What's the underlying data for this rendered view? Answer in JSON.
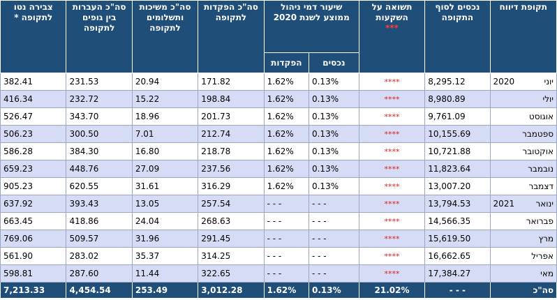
{
  "headers": {
    "period": "תקופת דיווח",
    "assets": "נכסים לסוף התקופה",
    "return": "תשואה על השקעות",
    "return_stars": "***",
    "fee": "שיעור דמי ניהול ממוצע לשנת 2020",
    "fee_assets": "נכסים",
    "fee_deposits": "הפקדות",
    "deposits": "סה\"כ הפקדות לתקופה",
    "withdrawals": "סה\"כ משיכות ותשלומים לתקופה",
    "transfers": "סה\"כ העברות בין גופים לתקופה",
    "net": "צבירה נטו לתקופה *"
  },
  "rows": [
    {
      "month": "יוני",
      "year": "2020",
      "assets": "8,295.12",
      "stars": "****",
      "fee_assets": "0.13%",
      "fee_deposits": "1.62%",
      "deposits": "171.82",
      "withdrawals": "20.94",
      "transfers": "231.53",
      "net": "382.41"
    },
    {
      "month": "יולי",
      "year": "",
      "assets": "8,980.89",
      "stars": "****",
      "fee_assets": "0.13%",
      "fee_deposits": "1.62%",
      "deposits": "198.84",
      "withdrawals": "15.22",
      "transfers": "232.72",
      "net": "416.34"
    },
    {
      "month": "אוגוסט",
      "year": "",
      "assets": "9,761.09",
      "stars": "****",
      "fee_assets": "0.13%",
      "fee_deposits": "1.62%",
      "deposits": "201.73",
      "withdrawals": "18.96",
      "transfers": "343.70",
      "net": "526.47"
    },
    {
      "month": "ספטמבר",
      "year": "",
      "assets": "10,155.69",
      "stars": "****",
      "fee_assets": "0.13%",
      "fee_deposits": "1.62%",
      "deposits": "212.74",
      "withdrawals": "7.01",
      "transfers": "300.50",
      "net": "506.23"
    },
    {
      "month": "אוקטובר",
      "year": "",
      "assets": "10,721.88",
      "stars": "****",
      "fee_assets": "0.13%",
      "fee_deposits": "1.62%",
      "deposits": "218.78",
      "withdrawals": "16.80",
      "transfers": "384.30",
      "net": "586.28"
    },
    {
      "month": "נובמבר",
      "year": "",
      "assets": "11,823.64",
      "stars": "****",
      "fee_assets": "0.13%",
      "fee_deposits": "1.62%",
      "deposits": "237.56",
      "withdrawals": "27.09",
      "transfers": "448.76",
      "net": "659.23"
    },
    {
      "month": "דצמבר",
      "year": "",
      "assets": "13,007.20",
      "stars": "****",
      "fee_assets": "0.13%",
      "fee_deposits": "1.62%",
      "deposits": "316.29",
      "withdrawals": "31.61",
      "transfers": "620.55",
      "net": "905.23"
    },
    {
      "month": "ינואר",
      "year": "2021",
      "assets": "13,794.53",
      "stars": "****",
      "fee_assets": "- - -",
      "fee_deposits": "- - -",
      "deposits": "257.54",
      "withdrawals": "13.05",
      "transfers": "393.43",
      "net": "637.92"
    },
    {
      "month": "פברואר",
      "year": "",
      "assets": "14,566.35",
      "stars": "****",
      "fee_assets": "- - -",
      "fee_deposits": "- - -",
      "deposits": "268.63",
      "withdrawals": "24.04",
      "transfers": "418.86",
      "net": "663.45"
    },
    {
      "month": "מרץ",
      "year": "",
      "assets": "15,619.50",
      "stars": "****",
      "fee_assets": "- - -",
      "fee_deposits": "- - -",
      "deposits": "291.45",
      "withdrawals": "31.96",
      "transfers": "509.57",
      "net": "769.06"
    },
    {
      "month": "אפריל",
      "year": "",
      "assets": "16,662.65",
      "stars": "****",
      "fee_assets": "- - -",
      "fee_deposits": "- - -",
      "deposits": "314.25",
      "withdrawals": "35.37",
      "transfers": "283.02",
      "net": "561.90"
    },
    {
      "month": "מאי",
      "year": "",
      "assets": "17,384.27",
      "stars": "****",
      "fee_assets": "- - -",
      "fee_deposits": "- - -",
      "deposits": "322.65",
      "withdrawals": "11.44",
      "transfers": "287.60",
      "net": "598.81"
    }
  ],
  "total": {
    "label": "סה\"כ",
    "assets": "- - -",
    "return": "21.02%",
    "fee_assets": "0.13%",
    "fee_deposits": "1.62%",
    "deposits": "3,012.28",
    "withdrawals": "253.49",
    "transfers": "4,454.54",
    "net": "7,213.33"
  },
  "colors": {
    "header_bg": "#1f4e79",
    "alt_row": "#d6dcf5",
    "stars": "#e02020"
  }
}
